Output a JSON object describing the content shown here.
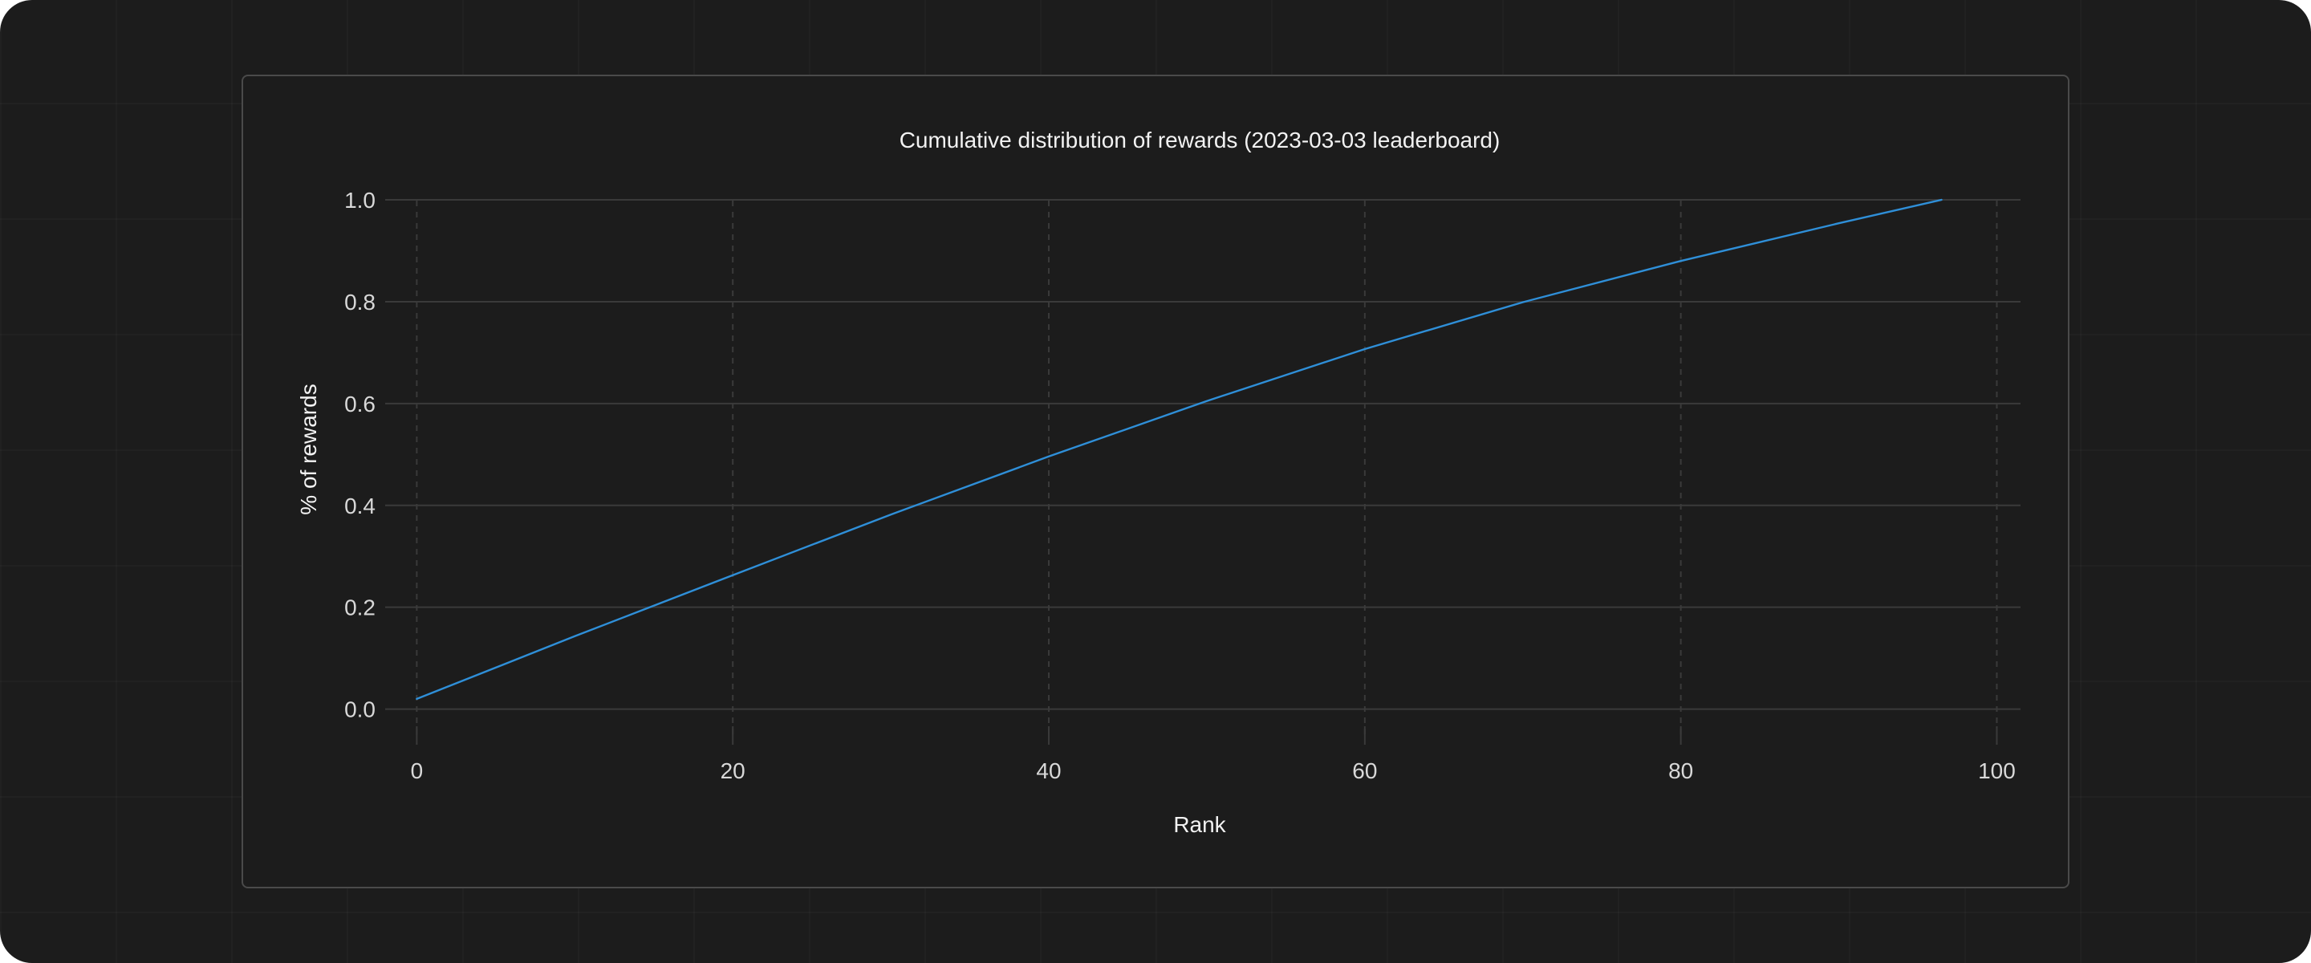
{
  "chart_data": {
    "type": "line",
    "title": "Cumulative distribution of rewards (2023-03-03 leaderboard)",
    "xlabel": "Rank",
    "ylabel": "% of rewards",
    "xlim": [
      -2,
      101.5
    ],
    "ylim": [
      -0.07,
      1.03
    ],
    "xticks": [
      0,
      20,
      40,
      60,
      80,
      100
    ],
    "yticks": [
      0.0,
      0.2,
      0.4,
      0.6,
      0.8,
      1.0
    ],
    "xtick_labels": [
      "0",
      "20",
      "40",
      "60",
      "80",
      "100"
    ],
    "ytick_labels": [
      "0.0",
      "0.2",
      "0.4",
      "0.6",
      "0.8",
      "1.0"
    ],
    "grid": {
      "horizontal": "solid",
      "vertical": "dashed"
    },
    "series": [
      {
        "color": "#2f8fd8",
        "x": [
          0,
          10,
          20,
          30,
          40,
          50,
          60,
          70,
          80,
          90,
          96.5
        ],
        "y": [
          0.02,
          0.143,
          0.263,
          0.382,
          0.496,
          0.605,
          0.707,
          0.799,
          0.88,
          0.954,
          1.0
        ]
      }
    ]
  },
  "colors": {
    "background": "#1c1c1c",
    "card_border": "#4a4a4a",
    "grid": "#3a3a3a",
    "line": "#2f8fd8",
    "text": "#f2f2f2"
  }
}
